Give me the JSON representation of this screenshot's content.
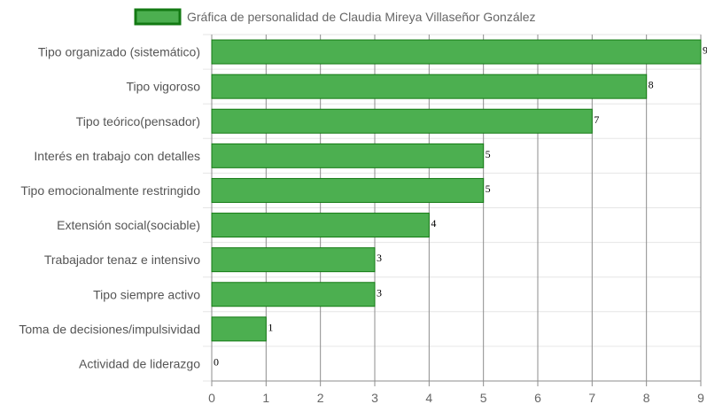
{
  "chart_data": {
    "type": "bar",
    "orientation": "horizontal",
    "series": [
      {
        "name": "Gráfica de personalidad de Claudia Mireya Villaseñor González",
        "color": "#4caf50",
        "border_color": "#137a13",
        "values": [
          9,
          8,
          7,
          5,
          5,
          4,
          3,
          3,
          1,
          0
        ]
      }
    ],
    "categories": [
      "Tipo organizado (sistemático)",
      "Tipo vigoroso",
      "Tipo teórico(pensador)",
      "Interés en trabajo con detalles",
      "Tipo emocionalmente restringido",
      "Extensión social(sociable)",
      "Trabajador tenaz e intensivo",
      "Tipo siempre activo",
      "Toma de decisiones/impulsividad",
      "Actividad de liderazgo"
    ],
    "xlim": [
      0,
      9
    ],
    "xticks": [
      "0",
      "1",
      "2",
      "3",
      "4",
      "5",
      "6",
      "7",
      "8",
      "9"
    ],
    "legend_position": "top",
    "grid": true,
    "data_labels": true
  }
}
